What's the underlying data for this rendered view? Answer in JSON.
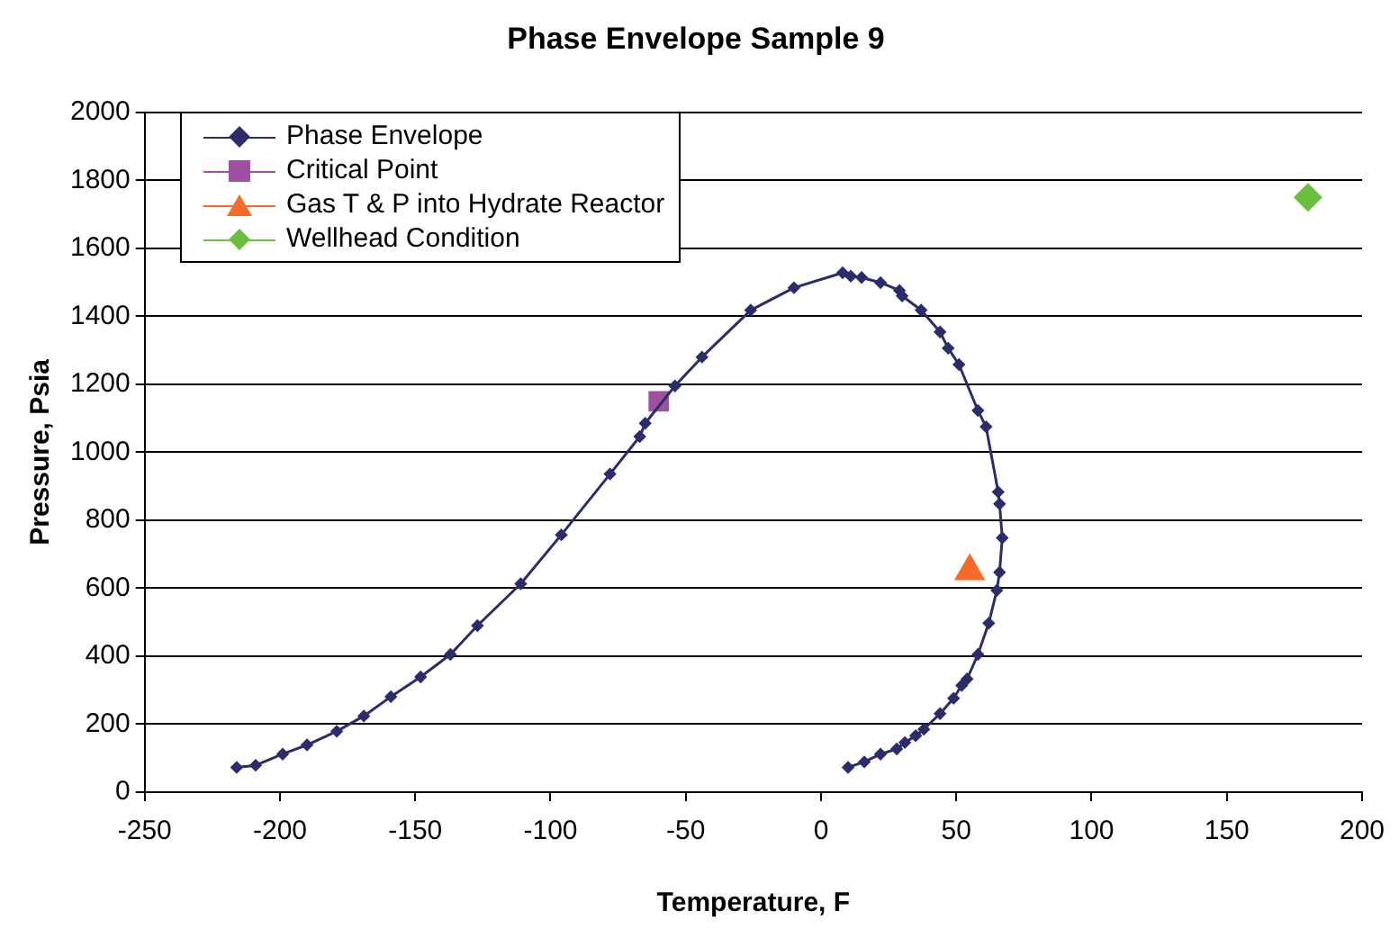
{
  "chart_data": {
    "type": "line",
    "title": "Phase Envelope Sample 9",
    "xlabel": "Temperature, F",
    "ylabel": "Pressure, Psia",
    "xlim": [
      -250,
      200
    ],
    "xticks": [
      -250,
      -200,
      -150,
      -100,
      -50,
      0,
      50,
      100,
      150,
      200
    ],
    "ylim": [
      0,
      2000
    ],
    "yticks": [
      0,
      200,
      400,
      600,
      800,
      1000,
      1200,
      1400,
      1600,
      1800,
      2000
    ],
    "grid": "y",
    "legend": "top left",
    "series": [
      {
        "name": "Phase Envelope",
        "type": "line",
        "marker": "diamond",
        "color": "#2b2d6b",
        "x": [
          -216,
          -209,
          -199,
          -190,
          -179,
          -169,
          -159,
          -148,
          -137,
          -127,
          -111,
          -96,
          -78,
          -67,
          -65,
          -54,
          -44,
          -26,
          -10,
          8,
          11,
          15,
          22,
          29,
          30,
          37,
          44,
          47,
          51,
          58,
          61,
          65.5,
          66,
          67,
          66,
          65,
          62,
          58,
          54,
          52,
          49,
          44,
          38,
          35,
          31,
          28,
          22,
          16,
          10
        ],
        "values": [
          73,
          79,
          112,
          139,
          179,
          224,
          281,
          339,
          405,
          490,
          613,
          757,
          936,
          1046,
          1085,
          1195,
          1280,
          1418,
          1484,
          1528,
          1518,
          1514,
          1499,
          1476,
          1460,
          1418,
          1354,
          1306,
          1258,
          1123,
          1075,
          883,
          848,
          748,
          647,
          594,
          497,
          405,
          333,
          314,
          276,
          231,
          185,
          166,
          146,
          127,
          112,
          89,
          73
        ]
      },
      {
        "name": "Critical Point",
        "type": "scatter",
        "marker": "square",
        "color": "#a050a0",
        "x": [
          -60
        ],
        "values": [
          1150
        ]
      },
      {
        "name": "Gas T & P into Hydrate Reactor",
        "type": "scatter",
        "marker": "triangle",
        "color": "#f26b2b",
        "x": [
          55
        ],
        "values": [
          650
        ]
      },
      {
        "name": "Wellhead Condition",
        "type": "scatter",
        "marker": "diamond",
        "color": "#6cbf3c",
        "x": [
          180
        ],
        "values": [
          1750
        ]
      }
    ]
  }
}
